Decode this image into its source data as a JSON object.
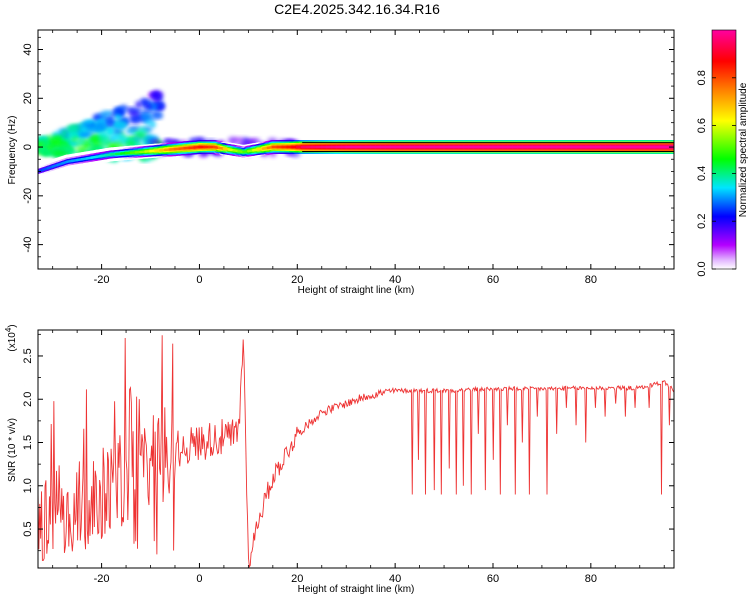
{
  "title": "C2E4.2025.342.16.34.R16",
  "chart_data": [
    {
      "type": "heatmap",
      "xlabel": "Height of straight line (km)",
      "ylabel": "Frequency (Hz)",
      "xlim": [
        -33,
        97
      ],
      "ylim": [
        -50,
        48
      ],
      "xticks": [
        -20,
        0,
        20,
        40,
        60,
        80
      ],
      "yticks": [
        -40,
        -20,
        0,
        20,
        40
      ],
      "colorbar": {
        "label": "Normalized spectral amplitude",
        "range": [
          0,
          1
        ],
        "ticks": [
          "0.0",
          "0.2",
          "0.4",
          "0.6",
          "0.8"
        ],
        "colormap": [
          "#ffffff",
          "#b400ff",
          "#0000ff",
          "#00e5ff",
          "#00ff00",
          "#ffff00",
          "#ff7f00",
          "#ff0000",
          "#ff00a0"
        ]
      },
      "main_trace": {
        "x": [
          -33,
          -30,
          -27,
          -24,
          -21,
          -18,
          -15,
          -12,
          -9,
          -6,
          -3,
          0,
          3,
          6,
          9,
          12,
          15,
          18,
          21,
          30,
          40,
          50,
          60,
          70,
          80,
          90,
          97
        ],
        "y": [
          -10,
          -8,
          -6,
          -5,
          -4,
          -3,
          -2.5,
          -2,
          -1.5,
          -1,
          -0.5,
          0,
          0,
          -1,
          -2,
          -1,
          0,
          0,
          0,
          0,
          0,
          0,
          0,
          0,
          0,
          0,
          0
        ],
        "amplitude": [
          0.15,
          0.18,
          0.2,
          0.22,
          0.25,
          0.3,
          0.38,
          0.45,
          0.55,
          0.65,
          0.7,
          0.75,
          0.7,
          0.5,
          0.4,
          0.55,
          0.7,
          0.75,
          0.85,
          0.9,
          0.92,
          0.92,
          0.93,
          0.93,
          0.94,
          0.94,
          0.94
        ]
      }
    },
    {
      "type": "line",
      "xlabel": "Height of straight line (km)",
      "ylabel": "SNR (10 * v/v)",
      "exponent_label": "(x10",
      "exponent_power": "4",
      "exponent_close": ")",
      "xlim": [
        -33,
        97
      ],
      "ylim": [
        0.05,
        2.8
      ],
      "xticks": [
        -20,
        0,
        20,
        40,
        60,
        80
      ],
      "yticks": [
        "0.5",
        "1.0",
        "1.5",
        "2.0",
        "2.5"
      ],
      "color": "#ee3333",
      "series": [
        {
          "x": [
            -33,
            -30,
            -27,
            -24,
            -21,
            -18,
            -15,
            -12,
            -9,
            -6,
            -3,
            0,
            3,
            6,
            8,
            9,
            10,
            12,
            15,
            18,
            20,
            25,
            30,
            35,
            40,
            45,
            50,
            60,
            70,
            80,
            90,
            95,
            97
          ],
          "y": [
            0.6,
            0.8,
            0.7,
            0.75,
            0.9,
            1.0,
            1.1,
            1.15,
            1.3,
            1.4,
            1.45,
            1.5,
            1.55,
            1.55,
            1.6,
            2.75,
            0.1,
            0.6,
            1.1,
            1.4,
            1.6,
            1.85,
            1.95,
            2.05,
            2.1,
            2.1,
            2.1,
            2.12,
            2.12,
            2.13,
            2.13,
            2.2,
            2.1
          ],
          "dips": [
            {
              "x": 43.5,
              "y": 0.9
            },
            {
              "x": 44.8,
              "y": 1.3
            },
            {
              "x": 46.2,
              "y": 0.9
            },
            {
              "x": 48,
              "y": 0.95
            },
            {
              "x": 49.5,
              "y": 0.9
            },
            {
              "x": 51,
              "y": 1.2
            },
            {
              "x": 52.5,
              "y": 0.9
            },
            {
              "x": 54,
              "y": 1.0
            },
            {
              "x": 55.5,
              "y": 0.9
            },
            {
              "x": 57,
              "y": 1.6
            },
            {
              "x": 58.5,
              "y": 0.95
            },
            {
              "x": 60,
              "y": 1.3
            },
            {
              "x": 61.5,
              "y": 0.9
            },
            {
              "x": 63,
              "y": 1.7
            },
            {
              "x": 64.5,
              "y": 0.9
            },
            {
              "x": 66,
              "y": 1.5
            },
            {
              "x": 67.5,
              "y": 0.9
            },
            {
              "x": 69,
              "y": 1.8
            },
            {
              "x": 71,
              "y": 0.9
            },
            {
              "x": 73,
              "y": 1.6
            },
            {
              "x": 75,
              "y": 1.9
            },
            {
              "x": 77,
              "y": 1.7
            },
            {
              "x": 79,
              "y": 1.5
            },
            {
              "x": 81,
              "y": 1.9
            },
            {
              "x": 83,
              "y": 1.8
            },
            {
              "x": 85,
              "y": 1.95
            },
            {
              "x": 87,
              "y": 1.8
            },
            {
              "x": 89,
              "y": 1.9
            },
            {
              "x": 92,
              "y": 1.9
            },
            {
              "x": 94.5,
              "y": 0.9
            },
            {
              "x": 96,
              "y": 1.7
            }
          ]
        }
      ]
    }
  ]
}
